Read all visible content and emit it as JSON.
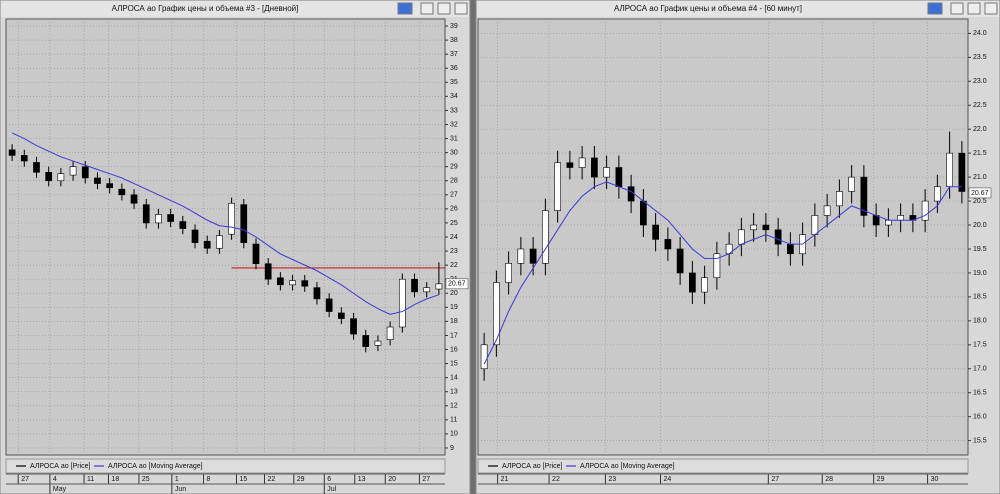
{
  "chart_data": [
    {
      "type": "candlestick",
      "title": "АЛРОСА ао График цены и объема #3 - [Дневной]",
      "x": [
        0,
        1,
        2,
        3,
        4,
        5,
        6,
        7,
        8,
        9,
        10,
        11,
        12,
        13,
        14,
        15,
        16,
        17,
        18,
        19,
        20,
        21,
        22,
        23,
        24,
        25,
        26,
        27,
        28,
        29,
        30,
        31,
        32,
        33,
        34,
        35
      ],
      "series": [
        {
          "name": "АЛРОСА ао [Price]",
          "color": "#000000",
          "open": [
            30.2,
            29.8,
            29.3,
            28.6,
            28.0,
            28.4,
            29.0,
            28.2,
            27.8,
            27.4,
            27.0,
            26.3,
            25.0,
            25.6,
            25.1,
            24.5,
            23.7,
            23.2,
            24.2,
            26.3,
            23.5,
            22.1,
            21.1,
            20.6,
            20.9,
            20.4,
            19.6,
            18.6,
            18.2,
            17.0,
            16.3,
            16.7,
            17.6,
            21.0,
            20.1,
            20.3
          ],
          "high": [
            30.6,
            30.2,
            29.7,
            29.0,
            28.9,
            29.4,
            29.4,
            28.6,
            28.2,
            27.8,
            27.4,
            26.7,
            26.0,
            26.0,
            25.5,
            24.9,
            24.1,
            24.5,
            26.8,
            26.7,
            23.9,
            22.5,
            21.5,
            21.3,
            21.3,
            20.8,
            20.0,
            19.0,
            18.6,
            17.4,
            17.0,
            18.0,
            21.4,
            21.4,
            20.8,
            22.2
          ],
          "low": [
            29.4,
            29.0,
            28.2,
            27.6,
            27.6,
            28.0,
            27.8,
            27.4,
            27.1,
            26.6,
            26.0,
            24.6,
            24.6,
            24.7,
            24.2,
            23.2,
            22.8,
            22.8,
            23.8,
            23.2,
            21.7,
            20.6,
            20.2,
            20.2,
            20.1,
            19.2,
            18.3,
            17.8,
            16.7,
            15.8,
            15.9,
            16.3,
            17.2,
            19.7,
            19.7,
            19.9
          ],
          "close": [
            29.8,
            29.4,
            28.6,
            28.0,
            28.5,
            29.0,
            28.2,
            27.8,
            27.5,
            27.0,
            26.4,
            25.0,
            25.6,
            25.1,
            24.6,
            23.6,
            23.2,
            24.1,
            26.4,
            23.6,
            22.1,
            21.0,
            20.6,
            20.9,
            20.5,
            19.6,
            18.7,
            18.2,
            17.1,
            16.2,
            16.6,
            17.6,
            21.0,
            20.1,
            20.4,
            20.67
          ]
        },
        {
          "name": "АЛРОСА ао [Moving Average]",
          "color": "#3b3bd6",
          "values": [
            31.4,
            31.0,
            30.5,
            30.1,
            29.7,
            29.4,
            29.1,
            28.8,
            28.5,
            28.2,
            27.8,
            27.4,
            27.0,
            26.6,
            26.2,
            25.7,
            25.2,
            24.8,
            24.7,
            24.5,
            24.0,
            23.4,
            22.8,
            22.4,
            22.0,
            21.6,
            21.1,
            20.6,
            20.0,
            19.4,
            18.9,
            18.5,
            18.7,
            19.2,
            19.6,
            19.9
          ]
        }
      ],
      "xlim": [
        -0.5,
        35.5
      ],
      "xticks": [
        {
          "value": 0.5,
          "label": "27"
        },
        {
          "value": 3.1,
          "label": "4"
        },
        {
          "value": 5.9,
          "label": "11"
        },
        {
          "value": 7.9,
          "label": "18"
        },
        {
          "value": 10.4,
          "label": "25"
        },
        {
          "value": 13.1,
          "label": "1"
        },
        {
          "value": 15.7,
          "label": "8"
        },
        {
          "value": 18.4,
          "label": "15"
        },
        {
          "value": 20.7,
          "label": "22"
        },
        {
          "value": 23.1,
          "label": "29"
        },
        {
          "value": 25.6,
          "label": "6"
        },
        {
          "value": 28.1,
          "label": "13"
        },
        {
          "value": 30.6,
          "label": "20"
        },
        {
          "value": 33.4,
          "label": "27"
        }
      ],
      "xticks_secondary": [
        {
          "value": 3.1,
          "label": "May"
        },
        {
          "value": 13.1,
          "label": "Jun"
        },
        {
          "value": 25.6,
          "label": "Jul"
        }
      ],
      "ylim": [
        8.5,
        39.5
      ],
      "yticks": [
        9,
        10,
        11,
        12,
        13,
        14,
        15,
        16,
        17,
        18,
        19,
        20,
        21,
        22,
        23,
        24,
        25,
        26,
        27,
        28,
        29,
        30,
        31,
        32,
        33,
        34,
        35,
        36,
        37,
        38,
        39
      ],
      "grid": true,
      "last_price": 20.67,
      "hline": {
        "value": 21.8,
        "x_start": 18,
        "color": "#cc2222"
      }
    },
    {
      "type": "candlestick",
      "title": "АЛРОСА ао График цены и объема #4 - [60 минут]",
      "x": [
        0,
        1,
        2,
        3,
        4,
        5,
        6,
        7,
        8,
        9,
        10,
        11,
        12,
        13,
        14,
        15,
        16,
        17,
        18,
        19,
        20,
        21,
        22,
        23,
        24,
        25,
        26,
        27,
        28,
        29,
        30,
        31,
        32,
        33,
        34,
        35,
        36,
        37,
        38,
        39
      ],
      "series": [
        {
          "name": "АЛРОСА ао [Price]",
          "color": "#000000",
          "open": [
            17.0,
            17.5,
            18.8,
            19.2,
            19.5,
            19.2,
            20.3,
            21.3,
            21.2,
            21.4,
            21.0,
            21.2,
            20.8,
            20.5,
            20.0,
            19.7,
            19.5,
            19.0,
            18.6,
            18.9,
            19.4,
            19.6,
            19.9,
            20.0,
            19.9,
            19.6,
            19.4,
            19.8,
            20.2,
            20.4,
            20.7,
            21.0,
            20.2,
            20.0,
            20.1,
            20.2,
            20.1,
            20.5,
            20.8,
            21.5
          ],
          "high": [
            17.75,
            19.05,
            19.45,
            19.75,
            19.75,
            20.55,
            21.55,
            21.55,
            21.65,
            21.65,
            21.45,
            21.45,
            21.05,
            20.75,
            20.25,
            19.95,
            19.75,
            19.25,
            19.15,
            19.65,
            19.85,
            20.15,
            20.25,
            20.25,
            20.15,
            19.85,
            20.05,
            20.45,
            20.65,
            20.95,
            21.25,
            21.25,
            20.45,
            20.35,
            20.45,
            20.45,
            20.75,
            21.05,
            21.95,
            21.75
          ],
          "low": [
            16.75,
            17.25,
            18.55,
            18.95,
            18.95,
            18.95,
            20.05,
            20.95,
            20.95,
            20.75,
            20.75,
            20.55,
            20.25,
            19.75,
            19.45,
            19.25,
            18.75,
            18.35,
            18.35,
            18.65,
            19.15,
            19.35,
            19.65,
            19.65,
            19.35,
            19.15,
            19.15,
            19.55,
            19.95,
            20.15,
            20.45,
            19.95,
            19.75,
            19.75,
            19.85,
            19.85,
            19.85,
            20.25,
            20.55,
            20.45
          ],
          "close": [
            17.5,
            18.8,
            19.2,
            19.5,
            19.2,
            20.3,
            21.3,
            21.2,
            21.4,
            21.0,
            21.2,
            20.8,
            20.5,
            20.0,
            19.7,
            19.5,
            19.0,
            18.6,
            18.9,
            19.4,
            19.6,
            19.9,
            20.0,
            19.9,
            19.6,
            19.4,
            19.8,
            20.2,
            20.4,
            20.7,
            21.0,
            20.2,
            20.0,
            20.1,
            20.2,
            20.1,
            20.5,
            20.8,
            21.5,
            20.7
          ]
        },
        {
          "name": "АЛРОСА ао [Moving Average]",
          "color": "#3b3bd6",
          "values": [
            17.1,
            17.6,
            18.2,
            18.7,
            19.1,
            19.5,
            19.9,
            20.3,
            20.6,
            20.8,
            20.9,
            20.8,
            20.7,
            20.5,
            20.3,
            20.1,
            19.8,
            19.5,
            19.3,
            19.3,
            19.4,
            19.6,
            19.7,
            19.8,
            19.7,
            19.6,
            19.6,
            19.8,
            20.0,
            20.2,
            20.4,
            20.3,
            20.2,
            20.1,
            20.1,
            20.1,
            20.2,
            20.4,
            20.8,
            20.8
          ]
        }
      ],
      "xlim": [
        -0.5,
        39.5
      ],
      "xticks": [
        {
          "value": 1.1,
          "label": "21"
        },
        {
          "value": 5.3,
          "label": "22"
        },
        {
          "value": 9.9,
          "label": "23"
        },
        {
          "value": 14.4,
          "label": "24"
        },
        {
          "value": 23.2,
          "label": "27"
        },
        {
          "value": 27.6,
          "label": "28"
        },
        {
          "value": 31.8,
          "label": "29"
        },
        {
          "value": 36.2,
          "label": "30"
        }
      ],
      "ylim": [
        15.2,
        24.3
      ],
      "yticks": [
        15.5,
        {
          "value": 16,
          "label": "16.0"
        },
        16.5,
        {
          "value": 17,
          "label": "17.0"
        },
        17.5,
        {
          "value": 18,
          "label": "18.0"
        },
        18.5,
        {
          "value": 19,
          "label": "19.0"
        },
        19.5,
        {
          "value": 20,
          "label": "20.0"
        },
        20.5,
        {
          "value": 21,
          "label": "21.0"
        },
        21.5,
        {
          "value": 22,
          "label": "22.0"
        },
        22.5,
        {
          "value": 23,
          "label": "23.0"
        },
        23.5,
        {
          "value": 24,
          "label": "24.0"
        }
      ],
      "grid": true,
      "last_price": 20.67
    }
  ]
}
